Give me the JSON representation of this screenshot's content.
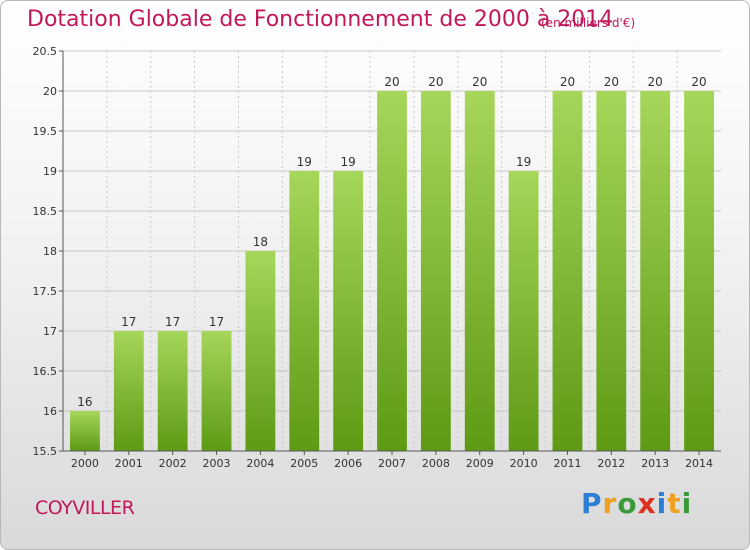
{
  "title": "Dotation Globale de Fonctionnement de 2000 à 2014",
  "unit_note": "(en milliers d'€)",
  "commune": "COYVILLER",
  "logo": {
    "text": "Proxiti",
    "icon": "proxiti-logo"
  },
  "colors": {
    "title": "#c2185b",
    "bar_top": "#a6d65a",
    "bar_bottom": "#5e9a14",
    "grid": "#c8c8c8"
  },
  "chart_data": {
    "type": "bar",
    "title": "Dotation Globale de Fonctionnement de 2000 à 2014",
    "xlabel": "",
    "ylabel": "",
    "categories": [
      "2000",
      "2001",
      "2002",
      "2003",
      "2004",
      "2005",
      "2006",
      "2007",
      "2008",
      "2009",
      "2010",
      "2011",
      "2012",
      "2013",
      "2014"
    ],
    "values": [
      16,
      17,
      17,
      17,
      18,
      19,
      19,
      20,
      20,
      20,
      19,
      20,
      20,
      20,
      20
    ],
    "data_labels": [
      "16",
      "17",
      "17",
      "17",
      "18",
      "19",
      "19",
      "20",
      "20",
      "20",
      "19",
      "20",
      "20",
      "20",
      "20"
    ],
    "ylim": [
      15.5,
      20.5
    ],
    "yticks": [
      15.5,
      16,
      16.5,
      17,
      17.5,
      18,
      18.5,
      19,
      19.5,
      20,
      20.5
    ],
    "ytick_labels": [
      "15.5",
      "16",
      "16.5",
      "17",
      "17.5",
      "18",
      "18.5",
      "19",
      "19.5",
      "20",
      "20.5"
    ],
    "grid": true,
    "legend": "none"
  }
}
